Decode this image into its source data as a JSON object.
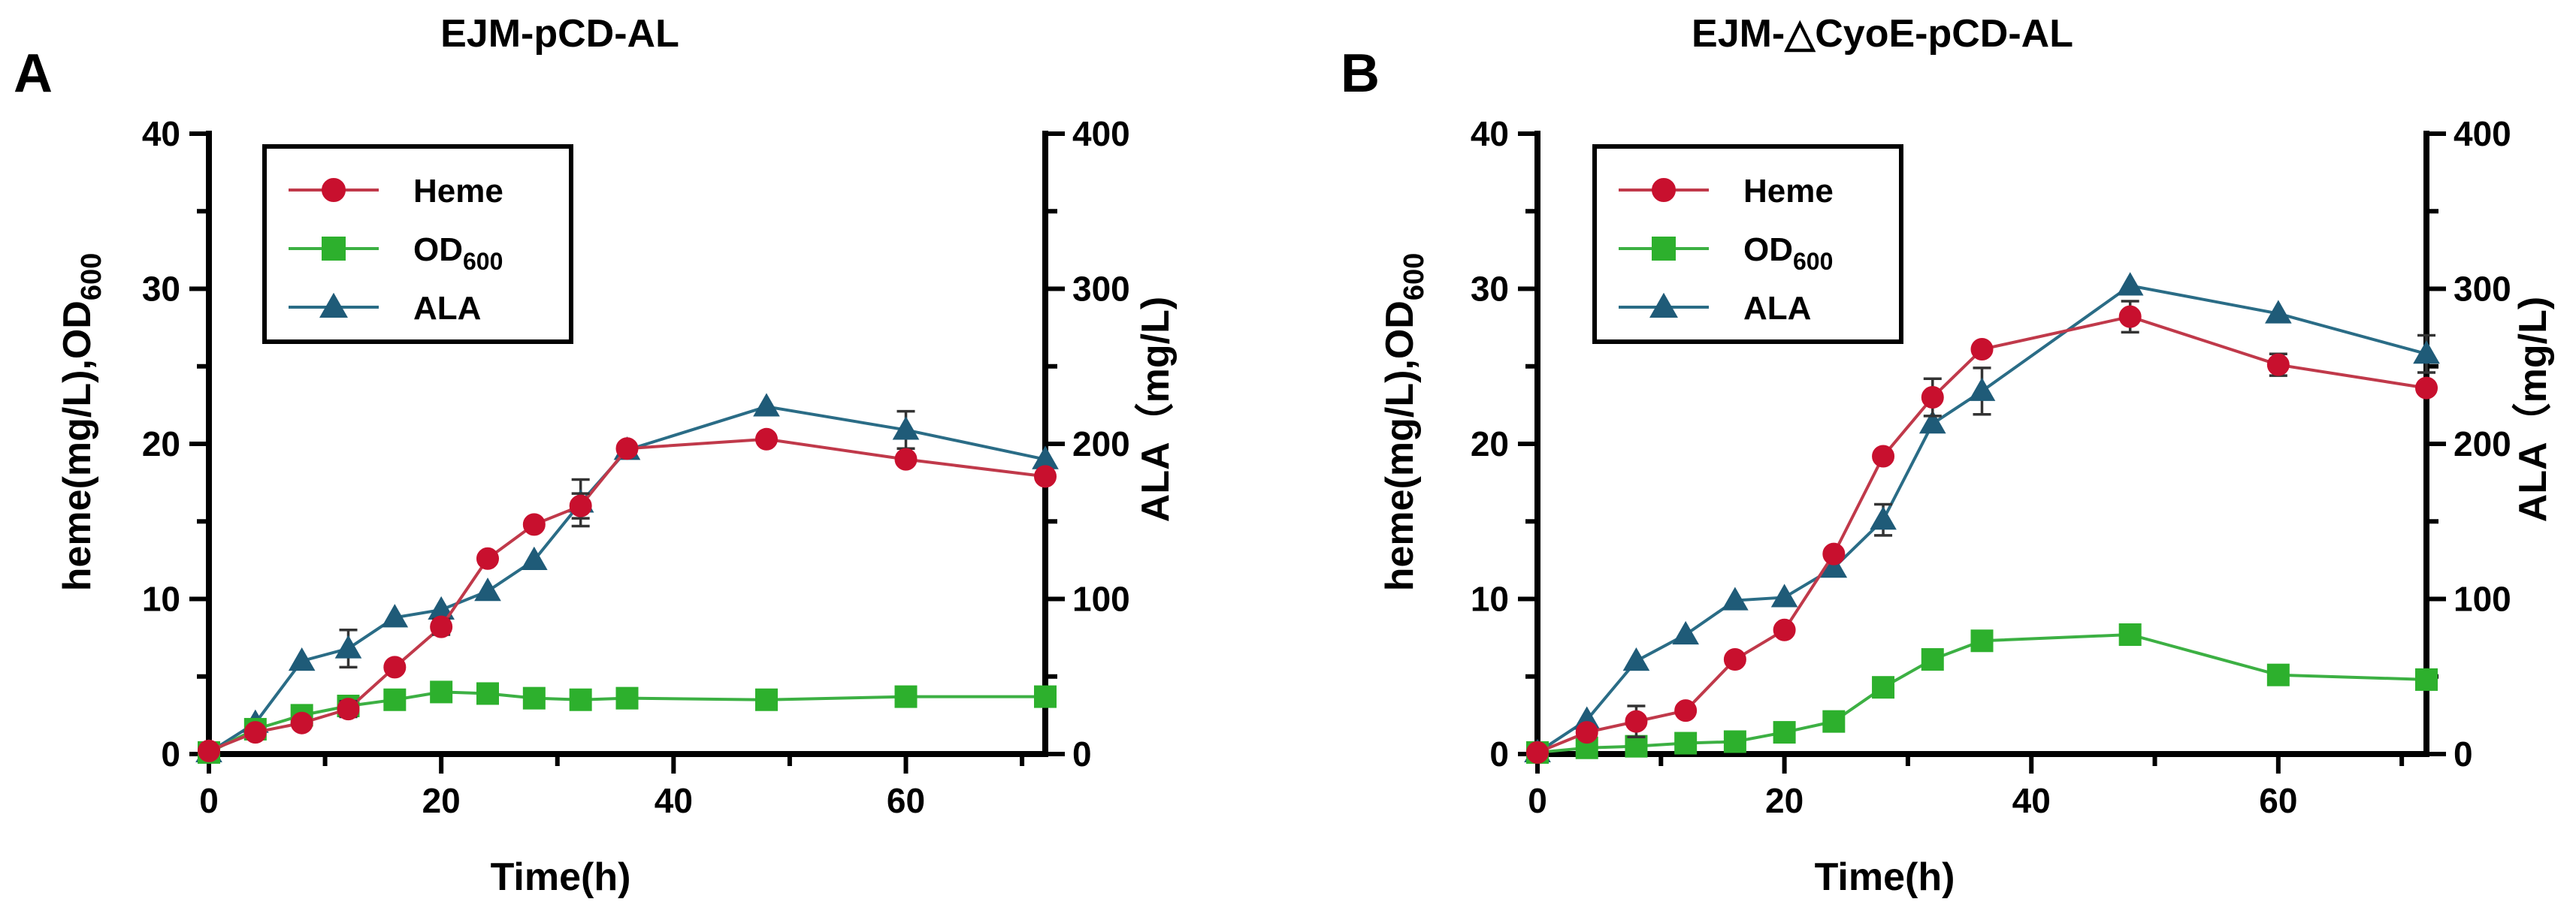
{
  "figure": {
    "panels": [
      {
        "panel_label": "A",
        "title": "EJM-pCD-AL",
        "y_label_left_main": "heme(mg/L),OD",
        "y_label_left_sub": "600",
        "y_label_right": "ALA（mg/L)",
        "x_label": "Time(h)",
        "x_ticks": [
          "0",
          "20",
          "40",
          "60"
        ],
        "y_left_ticks": [
          "0",
          "10",
          "20",
          "30",
          "40"
        ],
        "y_right_ticks": [
          "0",
          "100",
          "200",
          "300",
          "400"
        ],
        "legend": [
          {
            "main": "Heme",
            "sub": ""
          },
          {
            "main": "OD",
            "sub": "600"
          },
          {
            "main": "ALA",
            "sub": ""
          }
        ]
      },
      {
        "panel_label": "B",
        "title": "EJM-△CyoE-pCD-AL",
        "y_label_left_main": "heme(mg/L),OD",
        "y_label_left_sub": "600",
        "y_label_right": "ALA（mg/L)",
        "x_label": "Time(h)",
        "x_ticks": [
          "0",
          "20",
          "40",
          "60"
        ],
        "y_left_ticks": [
          "0",
          "10",
          "20",
          "30",
          "40"
        ],
        "y_right_ticks": [
          "0",
          "100",
          "200",
          "300",
          "400"
        ],
        "legend": [
          {
            "main": "Heme",
            "sub": ""
          },
          {
            "main": "OD",
            "sub": "600"
          },
          {
            "main": "ALA",
            "sub": ""
          }
        ]
      }
    ]
  },
  "colors": {
    "heme": "#c8102e",
    "heme_line": "#c0394a",
    "od600": "#2db02d",
    "od600_line": "#3cb043",
    "ala": "#1f5b78",
    "ala_line": "#2a6c86"
  },
  "chart_data": [
    {
      "type": "line",
      "title": "EJM-pCD-AL",
      "xlabel": "Time(h)",
      "ylabel": "heme(mg/L),OD600",
      "y2label": "ALA（mg/L)",
      "xlim": [
        0,
        72
      ],
      "ylim": [
        0,
        40
      ],
      "y2lim": [
        0,
        400
      ],
      "legend_position": "top-left",
      "series": [
        {
          "name": "Heme",
          "axis": "left",
          "marker": "circle",
          "x": [
            0,
            4,
            8,
            12,
            16,
            20,
            24,
            28,
            32,
            36,
            48,
            60,
            72
          ],
          "values": [
            0.2,
            1.4,
            2.0,
            2.9,
            5.6,
            8.2,
            12.6,
            14.8,
            16.0,
            19.7,
            20.3,
            19.0,
            17.9
          ],
          "errors": [
            0,
            0,
            0,
            0.5,
            0,
            0.5,
            0,
            0,
            0.8,
            0.3,
            0,
            0,
            0
          ]
        },
        {
          "name": "OD600",
          "axis": "left",
          "marker": "square",
          "x": [
            0,
            4,
            8,
            12,
            16,
            20,
            24,
            28,
            32,
            36,
            48,
            60,
            72
          ],
          "values": [
            0.1,
            1.6,
            2.5,
            3.1,
            3.5,
            4.0,
            3.9,
            3.6,
            3.5,
            3.6,
            3.5,
            3.7,
            3.7
          ],
          "errors": [
            0,
            0,
            0,
            0,
            0,
            0,
            0,
            0,
            0,
            0,
            0,
            0,
            0
          ]
        },
        {
          "name": "ALA",
          "axis": "right",
          "marker": "triangle",
          "x": [
            0,
            4,
            8,
            12,
            16,
            20,
            24,
            28,
            32,
            36,
            48,
            60,
            72
          ],
          "values": [
            1,
            20,
            60,
            68,
            88,
            93,
            105,
            125,
            162,
            196,
            224,
            209,
            190
          ],
          "errors": [
            0,
            0,
            0,
            12,
            0,
            0,
            0,
            0,
            15,
            0,
            0,
            12,
            0
          ]
        }
      ]
    },
    {
      "type": "line",
      "title": "EJM-△CyoE-pCD-AL",
      "xlabel": "Time(h)",
      "ylabel": "heme(mg/L),OD600",
      "y2label": "ALA（mg/L)",
      "xlim": [
        0,
        72
      ],
      "ylim": [
        0,
        40
      ],
      "y2lim": [
        0,
        400
      ],
      "legend_position": "top-left",
      "series": [
        {
          "name": "Heme",
          "axis": "left",
          "marker": "circle",
          "x": [
            0,
            4,
            8,
            12,
            16,
            20,
            24,
            28,
            32,
            36,
            48,
            60,
            72
          ],
          "values": [
            0.1,
            1.4,
            2.1,
            2.8,
            6.1,
            8.0,
            12.9,
            19.2,
            23.0,
            26.1,
            28.2,
            25.1,
            23.6
          ],
          "errors": [
            0,
            0,
            1.0,
            0,
            0,
            0,
            0,
            0,
            1.2,
            0,
            1.0,
            0.7,
            0
          ]
        },
        {
          "name": "OD600",
          "axis": "left",
          "marker": "square",
          "x": [
            0,
            4,
            8,
            12,
            16,
            20,
            24,
            28,
            32,
            36,
            48,
            60,
            72
          ],
          "values": [
            0.1,
            0.4,
            0.5,
            0.7,
            0.8,
            1.4,
            2.1,
            4.3,
            6.1,
            7.3,
            7.7,
            5.1,
            4.8
          ],
          "errors": [
            0,
            0,
            0,
            0,
            0,
            0,
            0,
            0,
            0,
            0,
            0,
            0,
            0
          ]
        },
        {
          "name": "ALA",
          "axis": "right",
          "marker": "triangle",
          "x": [
            0,
            4,
            8,
            12,
            16,
            20,
            24,
            28,
            32,
            36,
            48,
            60,
            72
          ],
          "values": [
            1,
            22,
            60,
            77,
            99,
            101,
            120,
            151,
            213,
            234,
            302,
            284,
            258
          ],
          "errors": [
            0,
            0,
            0,
            0,
            0,
            0,
            0,
            10,
            0,
            15,
            0,
            0,
            12
          ]
        }
      ]
    }
  ]
}
